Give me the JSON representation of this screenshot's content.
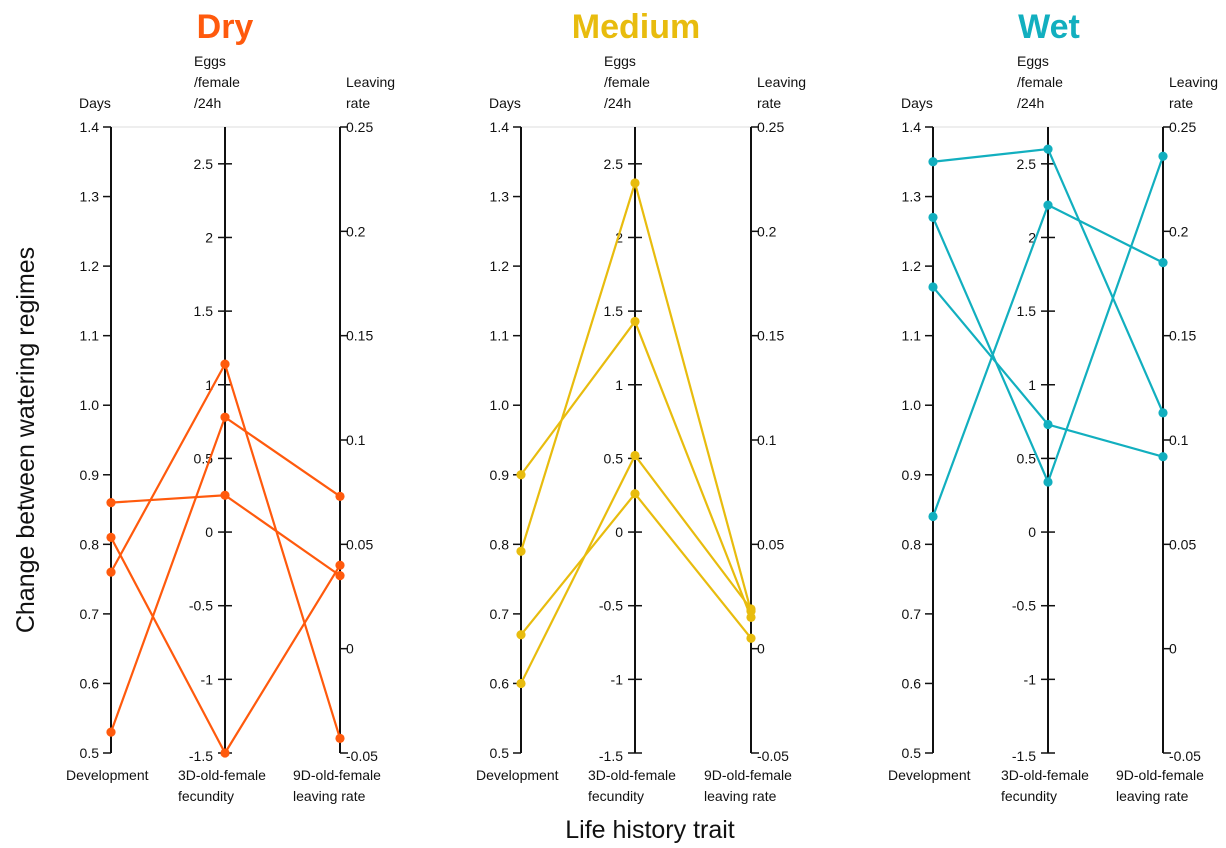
{
  "figure": {
    "ylabel": "Change between watering regimes",
    "xlabel": "Life history trait"
  },
  "axes": [
    {
      "head": [
        "Days"
      ],
      "trait": [
        "Development"
      ],
      "ticks": [
        "0.5",
        "0.6",
        "0.7",
        "0.8",
        "0.9",
        "1.0",
        "1.1",
        "1.2",
        "1.3",
        "1.4"
      ],
      "range": [
        0.5,
        1.4
      ]
    },
    {
      "head": [
        "Eggs",
        "/female",
        "/24h"
      ],
      "trait": [
        "3D-old-female",
        "fecundity"
      ],
      "ticks": [
        "-1.5",
        "-1",
        "-0.5",
        "0",
        "0.5",
        "1",
        "1.5",
        "2",
        "2.5"
      ],
      "range": [
        -1.5,
        2.75
      ]
    },
    {
      "head": [
        "Leaving",
        "rate"
      ],
      "trait": [
        "9D-old-female",
        "leaving rate"
      ],
      "ticks": [
        "-0.05",
        "0",
        "0.05",
        "0.1",
        "0.15",
        "0.2",
        "0.25"
      ],
      "range": [
        -0.05,
        0.25
      ]
    }
  ],
  "chart_data": [
    {
      "type": "line",
      "title": "Dry",
      "color": "#FF5A0D",
      "categories": [
        "Development",
        "3D-old-female fecundity",
        "9D-old-female leaving rate"
      ],
      "series": [
        {
          "values": [
            0.86,
            0.25,
            0.035
          ]
        },
        {
          "values": [
            0.81,
            -1.5,
            0.04
          ]
        },
        {
          "values": [
            0.76,
            1.14,
            -0.043
          ]
        },
        {
          "values": [
            0.53,
            0.78,
            0.073
          ]
        }
      ]
    },
    {
      "type": "line",
      "title": "Medium",
      "color": "#E8BC0E",
      "categories": [
        "Development",
        "3D-old-female fecundity",
        "9D-old-female leaving rate"
      ],
      "series": [
        {
          "values": [
            0.9,
            1.43,
            0.015
          ]
        },
        {
          "values": [
            0.79,
            2.37,
            0.018
          ]
        },
        {
          "values": [
            0.67,
            0.26,
            0.005
          ]
        },
        {
          "values": [
            0.6,
            0.52,
            0.019
          ]
        }
      ]
    },
    {
      "type": "line",
      "title": "Wet",
      "color": "#12AFBF",
      "categories": [
        "Development",
        "3D-old-female fecundity",
        "9D-old-female leaving rate"
      ],
      "series": [
        {
          "values": [
            1.35,
            2.6,
            0.113
          ]
        },
        {
          "values": [
            1.27,
            0.34,
            0.236
          ]
        },
        {
          "values": [
            1.17,
            0.73,
            0.092
          ]
        },
        {
          "values": [
            0.84,
            2.22,
            0.185
          ]
        }
      ]
    }
  ]
}
